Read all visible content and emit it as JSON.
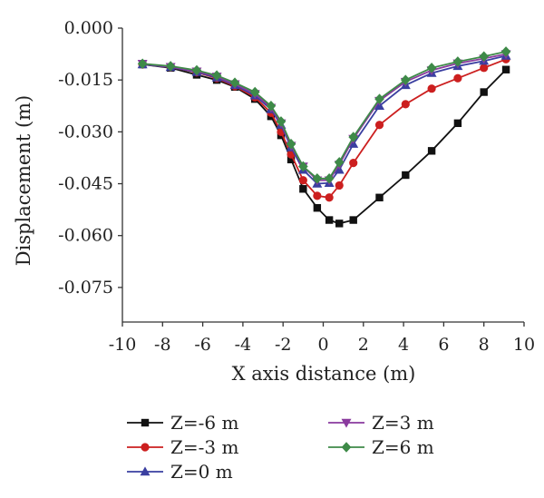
{
  "chart_data": {
    "type": "line",
    "title": "",
    "xlabel": "X axis distance (m)",
    "ylabel": "Displacement (m)",
    "xlim": [
      -10,
      10
    ],
    "ylim": [
      -0.085,
      0.0
    ],
    "xticks": [
      -10,
      -8,
      -6,
      -4,
      -2,
      0,
      2,
      4,
      6,
      8,
      10
    ],
    "xtick_labels": [
      "-10",
      "-8",
      "-6",
      "-4",
      "-2",
      "0",
      "2",
      "4",
      "6",
      "8",
      "10"
    ],
    "yticks": [
      0.0,
      -0.015,
      -0.03,
      -0.045,
      -0.06,
      -0.075
    ],
    "ytick_labels": [
      "0.000",
      "-0.015",
      "-0.030",
      "-0.045",
      "-0.060",
      "-0.075"
    ],
    "grid": false,
    "legend_position": "bottom",
    "x": [
      -9.0,
      -7.6,
      -6.3,
      -5.3,
      -4.4,
      -3.4,
      -2.6,
      -2.1,
      -1.6,
      -1.0,
      -0.3,
      0.3,
      0.8,
      1.5,
      2.8,
      4.1,
      5.4,
      6.7,
      8.0,
      9.1
    ],
    "series": [
      {
        "name": "Z=-6 m",
        "color": "#111111",
        "marker": "square",
        "values": [
          -0.0105,
          -0.0115,
          -0.0135,
          -0.015,
          -0.017,
          -0.0205,
          -0.0255,
          -0.031,
          -0.038,
          -0.0465,
          -0.052,
          -0.0555,
          -0.0565,
          -0.0555,
          -0.049,
          -0.0425,
          -0.0355,
          -0.0275,
          -0.0185,
          -0.012
        ]
      },
      {
        "name": "Z=-3 m",
        "color": "#cc1f1f",
        "marker": "circle",
        "values": [
          -0.0105,
          -0.0113,
          -0.0128,
          -0.0145,
          -0.0168,
          -0.02,
          -0.0245,
          -0.03,
          -0.0365,
          -0.044,
          -0.0485,
          -0.049,
          -0.0455,
          -0.039,
          -0.028,
          -0.022,
          -0.0175,
          -0.0145,
          -0.0115,
          -0.009
        ]
      },
      {
        "name": "Z=0 m",
        "color": "#3a3fa0",
        "marker": "triangle-up",
        "values": [
          -0.0105,
          -0.0113,
          -0.0127,
          -0.0143,
          -0.0165,
          -0.0195,
          -0.0235,
          -0.028,
          -0.0345,
          -0.041,
          -0.045,
          -0.0448,
          -0.041,
          -0.0335,
          -0.0225,
          -0.0165,
          -0.013,
          -0.011,
          -0.0095,
          -0.008
        ]
      },
      {
        "name": "Z=3 m",
        "color": "#8a3a9e",
        "marker": "triangle-down",
        "values": [
          -0.0103,
          -0.0112,
          -0.0125,
          -0.014,
          -0.0162,
          -0.019,
          -0.023,
          -0.0275,
          -0.034,
          -0.04,
          -0.044,
          -0.044,
          -0.0395,
          -0.032,
          -0.021,
          -0.0155,
          -0.0122,
          -0.0102,
          -0.0088,
          -0.0075
        ]
      },
      {
        "name": "Z=6 m",
        "color": "#3e8a48",
        "marker": "diamond",
        "values": [
          -0.0103,
          -0.011,
          -0.0122,
          -0.0137,
          -0.0158,
          -0.0185,
          -0.0225,
          -0.027,
          -0.0335,
          -0.04,
          -0.0435,
          -0.0435,
          -0.0388,
          -0.0315,
          -0.0205,
          -0.015,
          -0.0115,
          -0.0097,
          -0.0082,
          -0.0068
        ]
      }
    ]
  }
}
